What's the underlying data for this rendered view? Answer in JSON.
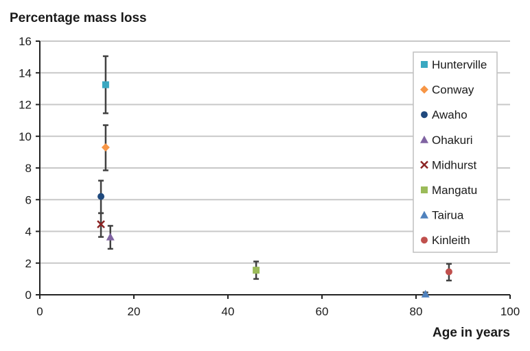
{
  "chart_data": {
    "type": "scatter",
    "title": "",
    "ylabel": "Percentage mass loss",
    "xlabel": "Age in years",
    "xlim": [
      0,
      100
    ],
    "ylim": [
      0,
      16
    ],
    "xticks": [
      0,
      20,
      40,
      60,
      80,
      100
    ],
    "yticks": [
      0,
      2,
      4,
      6,
      8,
      10,
      12,
      14,
      16
    ],
    "grid": "horizontal",
    "legend_position": "top-right",
    "series": [
      {
        "name": "Hunterville",
        "color": "#3aa8c1",
        "marker": "square",
        "x": 14,
        "y": 13.25,
        "err_low": 11.45,
        "err_high": 15.05
      },
      {
        "name": "Conway",
        "color": "#f79646",
        "marker": "diamond",
        "x": 14,
        "y": 9.3,
        "err_low": 7.85,
        "err_high": 10.7
      },
      {
        "name": "Awaho",
        "color": "#1f497d",
        "marker": "circle",
        "x": 13,
        "y": 6.2,
        "err_low": 5.15,
        "err_high": 7.2
      },
      {
        "name": "Ohakuri",
        "color": "#8064a2",
        "marker": "triangle",
        "x": 15,
        "y": 3.65,
        "err_low": 2.9,
        "err_high": 4.35
      },
      {
        "name": "Midhurst",
        "color": "#8b2323",
        "marker": "x",
        "x": 13,
        "y": 4.45,
        "err_low": 3.65,
        "err_high": 5.15
      },
      {
        "name": "Mangatu",
        "color": "#9bbb59",
        "marker": "square",
        "x": 46,
        "y": 1.55,
        "err_low": 1.0,
        "err_high": 2.1
      },
      {
        "name": "Tairua",
        "color": "#4f81bd",
        "marker": "triangle",
        "x": 82,
        "y": 0.05,
        "err_low": 0.0,
        "err_high": 0.15
      },
      {
        "name": "Kinleith",
        "color": "#c0504d",
        "marker": "circle",
        "x": 87,
        "y": 1.45,
        "err_low": 0.9,
        "err_high": 1.95
      }
    ]
  }
}
